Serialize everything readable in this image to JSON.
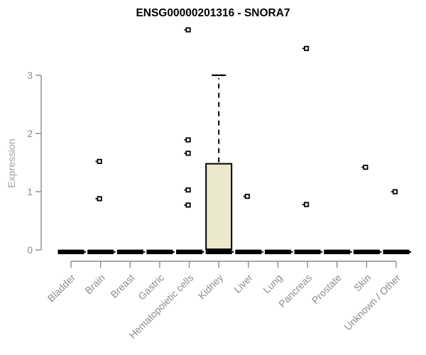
{
  "chart_data": {
    "type": "boxplot",
    "title": "ENSG00000201316 - SNORA7",
    "ylabel": "Expression",
    "xlabel": "",
    "categories": [
      "Bladder",
      "Brain",
      "Breast",
      "Gastric",
      "Hematopoietic cells",
      "Kidney",
      "Liver",
      "Lung",
      "Pancreas",
      "Prostate",
      "Skin",
      "Unknown / Other"
    ],
    "yticks": [
      0,
      1,
      2,
      3
    ],
    "ylim": [
      0,
      3.9
    ],
    "grid": false,
    "legend": false,
    "note": "All categories have a thick median bar collapsed at 0; only Kidney shows an extended box",
    "medians_at_zero_categories": [
      "Bladder",
      "Brain",
      "Breast",
      "Gastric",
      "Hematopoietic cells",
      "Kidney",
      "Liver",
      "Lung",
      "Pancreas",
      "Prostate",
      "Skin",
      "Unknown / Other"
    ],
    "boxes": [
      {
        "category": "Kidney",
        "q1": 0,
        "median": 0.02,
        "q3": 1.48,
        "whisker_low": 0,
        "whisker_high": 3.0
      }
    ],
    "outliers": [
      {
        "category": "Brain",
        "values": [
          1.52,
          0.88
        ]
      },
      {
        "category": "Hematopoietic cells",
        "values": [
          3.78,
          1.89,
          1.66,
          1.03,
          0.77
        ]
      },
      {
        "category": "Liver",
        "values": [
          0.92
        ]
      },
      {
        "category": "Pancreas",
        "values": [
          3.46,
          0.78
        ]
      },
      {
        "category": "Skin",
        "values": [
          1.42
        ]
      },
      {
        "category": "Unknown / Other",
        "values": [
          1.0
        ]
      }
    ],
    "marker": "open-square",
    "colors": {
      "box_fill": "#EDE8CB",
      "box_stroke": "#000000",
      "median_bar": "#000000",
      "whisker": "#000000",
      "outlier": "#000000",
      "axis": "#8a8a8a",
      "tick_label": "#8c8c8c",
      "title": "#000000",
      "background": "#ffffff"
    }
  }
}
